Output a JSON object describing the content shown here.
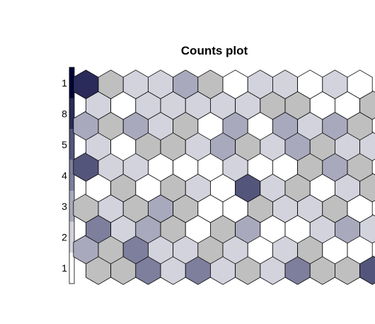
{
  "chart_data": {
    "type": "heatmap",
    "title": "Counts plot",
    "legend": {
      "placement": "left",
      "labels": [
        "1",
        "2",
        "3",
        "4",
        "5",
        "8",
        "1"
      ],
      "colors": [
        "#ffffff",
        "#d3d3dd",
        "#a9a9bd",
        "#7e7f9c",
        "#54557b",
        "#2a2b5a",
        "#000039"
      ]
    },
    "grid": {
      "rows": 10,
      "cols": 12,
      "layout": "hexagonal"
    },
    "levels_by_row": [
      [
        2,
        2,
        4,
        1,
        4,
        1,
        2,
        1,
        4,
        2,
        2,
        5
      ],
      [
        3,
        2,
        4,
        1,
        1,
        2,
        1,
        0,
        1,
        2,
        0,
        0
      ],
      [
        4,
        1,
        3,
        2,
        0,
        2,
        3,
        0,
        0,
        1,
        3,
        1
      ],
      [
        2,
        1,
        2,
        3,
        2,
        0,
        0,
        2,
        1,
        1,
        2,
        0
      ],
      [
        0,
        2,
        0,
        2,
        1,
        0,
        5,
        1,
        2,
        0,
        1,
        2
      ],
      [
        5,
        1,
        1,
        0,
        0,
        0,
        1,
        0,
        0,
        2,
        3,
        2
      ],
      [
        1,
        0,
        2,
        2,
        1,
        3,
        2,
        1,
        3,
        2,
        1,
        1
      ],
      [
        3,
        2,
        3,
        1,
        2,
        0,
        3,
        0,
        3,
        1,
        3,
        2
      ],
      [
        1,
        0,
        1,
        1,
        1,
        1,
        1,
        2,
        2,
        0,
        0,
        2
      ],
      [
        5,
        2,
        1,
        1,
        3,
        2,
        0,
        1,
        1,
        0,
        1,
        0
      ]
    ],
    "level_colors": [
      "#ffffff",
      "#d3d3dd",
      "#bfbfbf",
      "#a9a9bd",
      "#7e7f9c",
      "#54557b"
    ],
    "highlight_color": "#2a2b5a",
    "highlight_cell": {
      "row": 9,
      "col": 0
    }
  }
}
